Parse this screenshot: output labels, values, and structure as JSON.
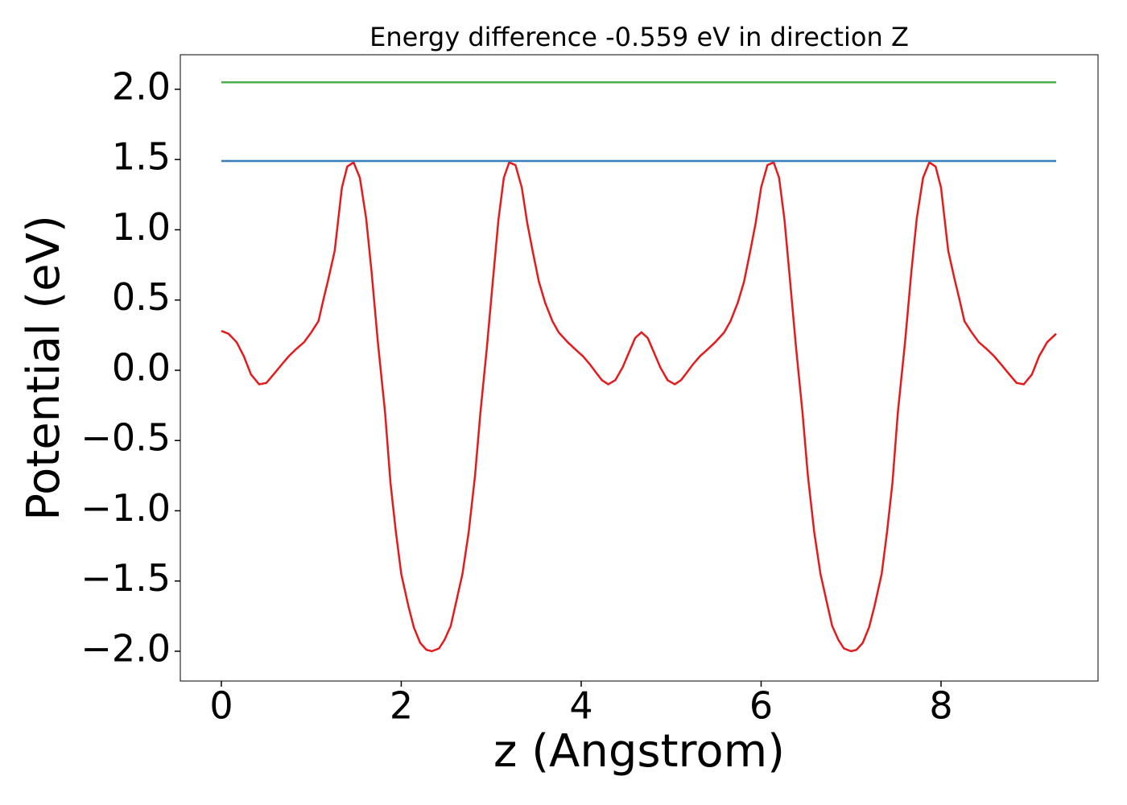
{
  "chart_data": {
    "type": "line",
    "title": "Energy difference -0.559 eV in direction Z",
    "xlabel": "z (Angstrom)",
    "ylabel": "Potential (eV)",
    "xlim": [
      -0.456,
      9.745
    ],
    "ylim": [
      -2.212,
      2.246
    ],
    "xticks": [
      0,
      2,
      4,
      6,
      8
    ],
    "yticks": [
      {
        "value": -2,
        "label": "−2.0"
      },
      {
        "value": -1.5,
        "label": "−1.5"
      },
      {
        "value": -1,
        "label": "−1.0"
      },
      {
        "value": -0.5,
        "label": "−0.5"
      },
      {
        "value": 0,
        "label": "0.0"
      },
      0.5,
      {
        "value": 1,
        "label": "1.0"
      },
      1.5,
      {
        "value": 2,
        "label": "2.0"
      }
    ],
    "grid": false,
    "series": [
      {
        "color": "#e41a1c",
        "x": [
          0,
          0.08,
          0.17,
          0.25,
          0.33,
          0.42,
          0.5,
          0.58,
          0.67,
          0.75,
          0.83,
          0.92,
          1.0,
          1.08,
          1.13,
          1.19,
          1.26,
          1.34,
          1.4,
          1.47,
          1.54,
          1.61,
          1.67,
          1.74,
          1.82,
          1.88,
          1.94,
          2.0,
          2.08,
          2.14,
          2.21,
          2.28,
          2.34,
          2.42,
          2.48,
          2.55,
          2.61,
          2.68,
          2.75,
          2.82,
          2.88,
          2.95,
          3.02,
          3.08,
          3.14,
          3.2,
          3.27,
          3.34,
          3.4,
          3.46,
          3.53,
          3.6,
          3.68,
          3.75,
          3.85,
          3.95,
          4.02,
          4.1,
          4.17,
          4.23,
          4.3,
          4.38,
          4.46,
          4.54,
          4.6,
          4.67,
          4.74,
          4.8,
          4.88,
          4.96,
          5.04,
          5.11,
          5.17,
          5.24,
          5.32,
          5.39,
          5.49,
          5.59,
          5.66,
          5.74,
          5.81,
          5.88,
          5.94,
          6.0,
          6.07,
          6.14,
          6.2,
          6.26,
          6.32,
          6.39,
          6.46,
          6.52,
          6.59,
          6.66,
          6.73,
          6.79,
          6.86,
          6.92,
          7.0,
          7.06,
          7.13,
          7.2,
          7.26,
          7.34,
          7.4,
          7.46,
          7.52,
          7.6,
          7.67,
          7.73,
          7.8,
          7.87,
          7.94,
          8.0,
          8.08,
          8.15,
          8.21,
          8.26,
          8.34,
          8.42,
          8.51,
          8.59,
          8.67,
          8.76,
          8.84,
          8.92,
          9.01,
          9.09,
          9.18,
          9.28
        ],
        "values": [
          0.28,
          0.26,
          0.2,
          0.1,
          -0.03,
          -0.1,
          -0.09,
          -0.03,
          0.04,
          0.1,
          0.15,
          0.2,
          0.27,
          0.35,
          0.49,
          0.65,
          0.85,
          1.3,
          1.45,
          1.48,
          1.37,
          1.08,
          0.7,
          0.2,
          -0.3,
          -0.8,
          -1.15,
          -1.45,
          -1.68,
          -1.83,
          -1.94,
          -1.99,
          -2.0,
          -1.98,
          -1.92,
          -1.82,
          -1.65,
          -1.45,
          -1.15,
          -0.75,
          -0.3,
          0.15,
          0.65,
          1.07,
          1.37,
          1.48,
          1.46,
          1.3,
          1.05,
          0.85,
          0.63,
          0.48,
          0.35,
          0.27,
          0.2,
          0.14,
          0.1,
          0.04,
          -0.02,
          -0.07,
          -0.1,
          -0.07,
          0.02,
          0.14,
          0.23,
          0.27,
          0.23,
          0.14,
          0.02,
          -0.07,
          -0.1,
          -0.07,
          -0.02,
          0.04,
          0.1,
          0.14,
          0.2,
          0.27,
          0.35,
          0.48,
          0.63,
          0.85,
          1.05,
          1.3,
          1.46,
          1.48,
          1.37,
          1.07,
          0.65,
          0.15,
          -0.3,
          -0.75,
          -1.15,
          -1.45,
          -1.65,
          -1.82,
          -1.92,
          -1.98,
          -2.0,
          -1.99,
          -1.94,
          -1.83,
          -1.68,
          -1.45,
          -1.15,
          -0.8,
          -0.3,
          0.2,
          0.7,
          1.08,
          1.37,
          1.48,
          1.45,
          1.3,
          0.85,
          0.65,
          0.49,
          0.35,
          0.27,
          0.2,
          0.15,
          0.1,
          0.04,
          -0.03,
          -0.09,
          -0.1,
          -0.03,
          0.1,
          0.2,
          0.26
        ]
      },
      {
        "color": "#377eb8",
        "x": [
          0,
          9.28
        ],
        "values": [
          1.49,
          1.49
        ]
      },
      {
        "color": "#4daf4a",
        "x": [
          0,
          9.28
        ],
        "values": [
          2.05,
          2.05
        ]
      }
    ]
  }
}
